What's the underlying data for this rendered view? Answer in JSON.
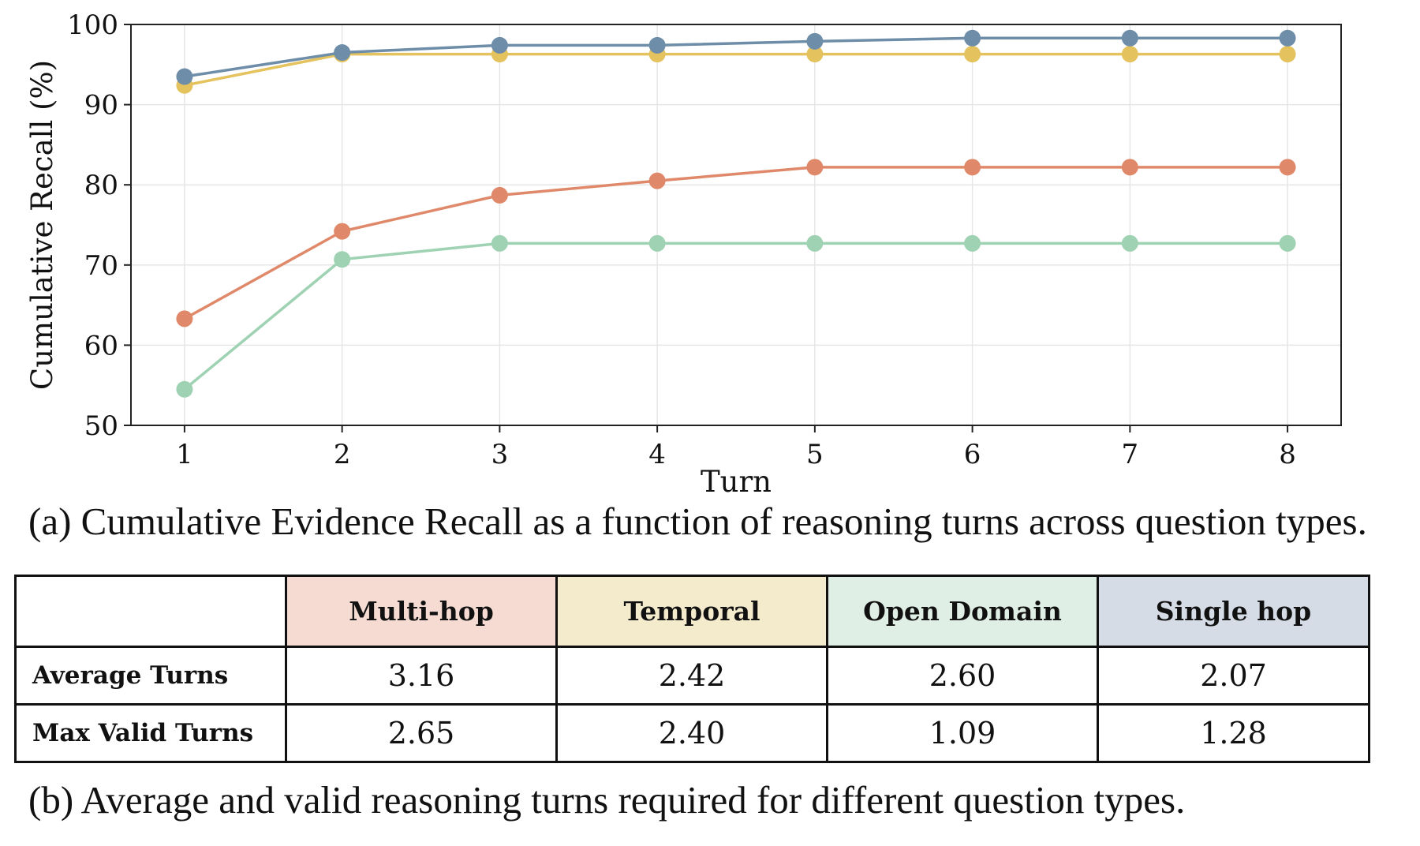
{
  "chart_data": {
    "type": "line",
    "xlabel": "Turn",
    "ylabel": "Cumulative Recall (%)",
    "x": [
      1,
      2,
      3,
      4,
      5,
      6,
      7,
      8
    ],
    "xlim": [
      0.66,
      8.34
    ],
    "ylim": [
      50,
      100
    ],
    "yticks": [
      50,
      60,
      70,
      80,
      90,
      100
    ],
    "grid": true,
    "legend": "none",
    "series": [
      {
        "color": "#e0896a",
        "values": [
          63.3,
          74.2,
          78.7,
          80.5,
          82.2,
          82.2,
          82.2,
          82.2
        ]
      },
      {
        "color": "#e4c25d",
        "values": [
          92.4,
          96.3,
          96.3,
          96.3,
          96.3,
          96.3,
          96.3,
          96.3
        ]
      },
      {
        "color": "#9ed2b2",
        "values": [
          54.5,
          70.7,
          72.7,
          72.7,
          72.7,
          72.7,
          72.7,
          72.7
        ]
      },
      {
        "color": "#6e8da8",
        "values": [
          93.5,
          96.5,
          97.4,
          97.4,
          97.9,
          98.3,
          98.3,
          98.3
        ]
      }
    ]
  },
  "captions": {
    "a": "(a) Cumulative Evidence Recall as a function of reasoning turns across question types.",
    "b": "(b) Average and valid reasoning turns required for different question types."
  },
  "table": {
    "columns": [
      {
        "label": "Multi-hop",
        "color": "#f5dbd2"
      },
      {
        "label": "Temporal",
        "color": "#f4ebcd"
      },
      {
        "label": "Open Domain",
        "color": "#e0efe5"
      },
      {
        "label": "Single hop",
        "color": "#d5dce5"
      }
    ],
    "rows": [
      {
        "label": "Average Turns",
        "values": [
          "3.16",
          "2.42",
          "2.60",
          "2.07"
        ]
      },
      {
        "label": "Max Valid Turns",
        "values": [
          "2.65",
          "2.40",
          "1.09",
          "1.28"
        ]
      }
    ]
  }
}
